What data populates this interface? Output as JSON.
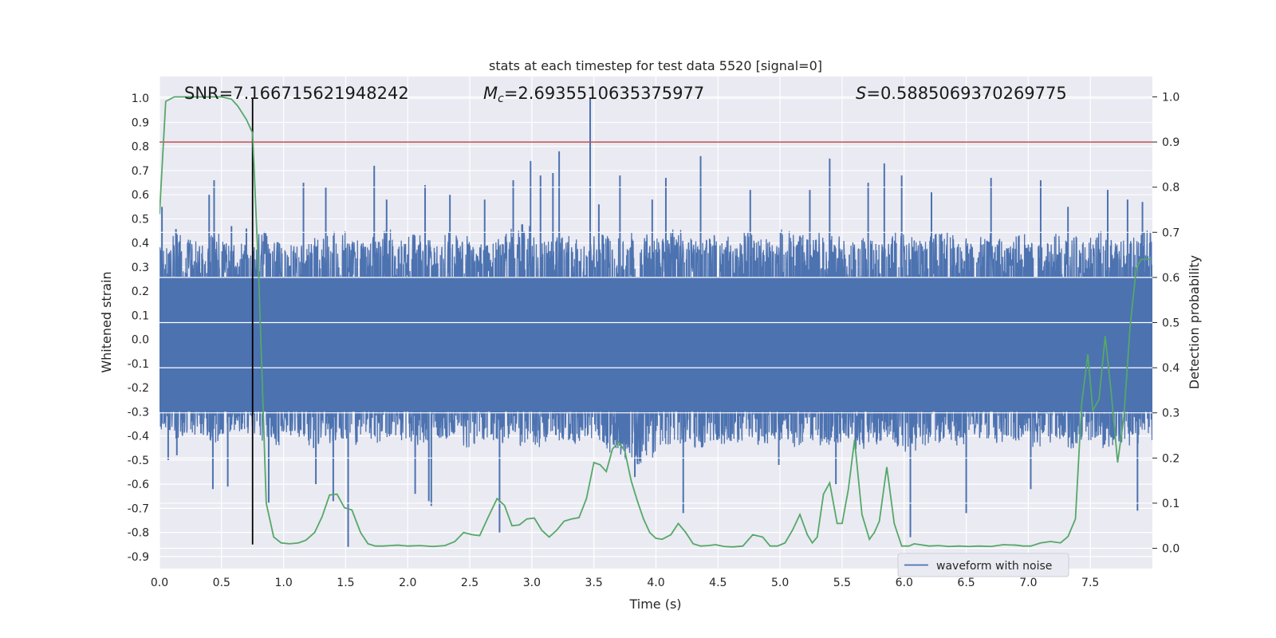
{
  "chart_data": {
    "type": "line",
    "title": "stats at each timestep for test data 5520 [signal=0]",
    "xlabel": "Time (s)",
    "ylabel": "Whitened strain",
    "ylabel_right": "Detection probability",
    "xlim": [
      0.0,
      8.0
    ],
    "ylim": [
      -0.95,
      1.09
    ],
    "ylim_right": [
      -0.045,
      1.045
    ],
    "x_ticks": [
      "0.0",
      "0.5",
      "1.0",
      "1.5",
      "2.0",
      "2.5",
      "3.0",
      "3.5",
      "4.0",
      "4.5",
      "5.0",
      "5.5",
      "6.0",
      "6.5",
      "7.0",
      "7.5"
    ],
    "y_ticks": [
      "1.0",
      "0.9",
      "0.8",
      "0.7",
      "0.6",
      "0.5",
      "0.4",
      "0.3",
      "0.2",
      "0.1",
      "0.0",
      "-0.1",
      "-0.2",
      "-0.3",
      "-0.4",
      "-0.5",
      "-0.6",
      "-0.7",
      "-0.8",
      "-0.9"
    ],
    "y_ticks_right": [
      "1.0",
      "0.9",
      "0.8",
      "0.7",
      "0.6",
      "0.5",
      "0.4",
      "0.3",
      "0.2",
      "0.1",
      "0.0"
    ],
    "grid": true,
    "legend": {
      "placement": "lower-right",
      "entries": [
        "waveform with noise"
      ]
    },
    "annotations": {
      "snr_label": "SNR=7.166715621948242",
      "mc_prefix": "M",
      "mc_sub": "c",
      "mc_value": "=2.6935510635375977",
      "s_prefix": "S",
      "s_value": "=0.5885069370269775"
    },
    "threshold_line": {
      "y_right": 0.9,
      "color": "#c44e52"
    },
    "marker_vline": {
      "x": 0.75,
      "color": "#000000"
    },
    "series": [
      {
        "name": "waveform with noise",
        "axis": "left",
        "color": "#4c72b0",
        "sample_rate": 2048,
        "duration": 8.0,
        "envelope_upper": [
          0.38,
          0.46,
          0.42,
          0.4,
          0.44,
          0.41,
          0.4,
          0.39,
          0.45,
          0.42,
          0.4,
          0.39,
          0.44,
          0.43,
          0.47,
          0.42,
          0.4,
          0.43,
          0.46,
          0.41,
          0.44,
          0.42,
          0.39,
          0.45,
          0.43,
          0.4,
          0.42,
          0.44,
          0.46,
          0.48,
          0.43,
          0.41,
          0.45,
          0.42,
          0.4,
          0.44,
          0.43,
          0.41,
          0.45,
          0.44,
          0.42,
          0.46,
          0.43,
          0.41,
          0.44,
          0.43,
          0.4,
          0.45,
          0.42,
          0.41,
          0.46,
          0.44,
          0.42,
          0.45,
          0.43,
          0.41,
          0.44,
          0.42,
          0.4,
          0.45,
          0.43,
          0.41,
          0.44,
          0.46,
          0.42,
          0.4,
          0.44,
          0.43,
          0.41,
          0.45,
          0.42,
          0.4,
          0.44,
          0.43,
          0.41,
          0.45,
          0.42,
          0.41,
          0.44,
          0.46
        ],
        "envelope_lower": [
          -0.38,
          -0.42,
          -0.4,
          -0.41,
          -0.43,
          -0.42,
          -0.4,
          -0.39,
          -0.42,
          -0.44,
          -0.4,
          -0.41,
          -0.45,
          -0.43,
          -0.42,
          -0.44,
          -0.4,
          -0.43,
          -0.41,
          -0.42,
          -0.44,
          -0.43,
          -0.41,
          -0.42,
          -0.45,
          -0.44,
          -0.42,
          -0.43,
          -0.41,
          -0.44,
          -0.45,
          -0.43,
          -0.42,
          -0.44,
          -0.41,
          -0.43,
          -0.48,
          -0.5,
          -0.52,
          -0.49,
          -0.46,
          -0.44,
          -0.43,
          -0.45,
          -0.42,
          -0.44,
          -0.43,
          -0.41,
          -0.44,
          -0.42,
          -0.43,
          -0.45,
          -0.42,
          -0.44,
          -0.43,
          -0.41,
          -0.46,
          -0.44,
          -0.42,
          -0.45,
          -0.47,
          -0.44,
          -0.43,
          -0.42,
          -0.44,
          -0.43,
          -0.41,
          -0.44,
          -0.42,
          -0.43,
          -0.45,
          -0.44,
          -0.42,
          -0.46,
          -0.44,
          -0.42,
          -0.45,
          -0.43,
          -0.44,
          -0.42
        ],
        "spikes": [
          {
            "x": 0.02,
            "y": 0.55
          },
          {
            "x": 0.07,
            "y": -0.5
          },
          {
            "x": 0.14,
            "y": -0.48
          },
          {
            "x": 0.4,
            "y": 0.6
          },
          {
            "x": 0.43,
            "y": -0.62
          },
          {
            "x": 0.44,
            "y": 0.66
          },
          {
            "x": 0.55,
            "y": -0.61
          },
          {
            "x": 0.58,
            "y": 0.47
          },
          {
            "x": 0.7,
            "y": 0.46
          },
          {
            "x": 0.88,
            "y": -0.68
          },
          {
            "x": 1.16,
            "y": 0.65
          },
          {
            "x": 1.26,
            "y": -0.6
          },
          {
            "x": 1.34,
            "y": 0.63
          },
          {
            "x": 1.4,
            "y": -0.67
          },
          {
            "x": 1.52,
            "y": -0.86
          },
          {
            "x": 1.73,
            "y": 0.72
          },
          {
            "x": 1.83,
            "y": 0.58
          },
          {
            "x": 2.06,
            "y": -0.64
          },
          {
            "x": 2.14,
            "y": 0.64
          },
          {
            "x": 2.17,
            "y": -0.67
          },
          {
            "x": 2.19,
            "y": -0.69
          },
          {
            "x": 2.34,
            "y": 0.6
          },
          {
            "x": 2.62,
            "y": 0.58
          },
          {
            "x": 2.74,
            "y": -0.8
          },
          {
            "x": 2.85,
            "y": 0.66
          },
          {
            "x": 2.99,
            "y": 0.74
          },
          {
            "x": 3.07,
            "y": 0.68
          },
          {
            "x": 3.17,
            "y": 0.69
          },
          {
            "x": 3.22,
            "y": 0.78
          },
          {
            "x": 3.47,
            "y": 1.0
          },
          {
            "x": 3.54,
            "y": 0.56
          },
          {
            "x": 3.71,
            "y": 0.68
          },
          {
            "x": 3.83,
            "y": -0.57
          },
          {
            "x": 3.97,
            "y": 0.58
          },
          {
            "x": 4.08,
            "y": 0.67
          },
          {
            "x": 4.22,
            "y": -0.72
          },
          {
            "x": 4.36,
            "y": 0.76
          },
          {
            "x": 4.76,
            "y": 0.62
          },
          {
            "x": 4.99,
            "y": -0.52
          },
          {
            "x": 5.24,
            "y": 0.62
          },
          {
            "x": 5.4,
            "y": 0.75
          },
          {
            "x": 5.45,
            "y": -0.6
          },
          {
            "x": 5.71,
            "y": 0.65
          },
          {
            "x": 5.84,
            "y": 0.73
          },
          {
            "x": 5.98,
            "y": 0.68
          },
          {
            "x": 6.05,
            "y": -0.82
          },
          {
            "x": 6.22,
            "y": 0.61
          },
          {
            "x": 6.5,
            "y": -0.72
          },
          {
            "x": 6.7,
            "y": 0.67
          },
          {
            "x": 7.02,
            "y": -0.62
          },
          {
            "x": 7.1,
            "y": 0.66
          },
          {
            "x": 7.32,
            "y": 0.55
          },
          {
            "x": 7.64,
            "y": 0.62
          },
          {
            "x": 7.8,
            "y": 0.58
          },
          {
            "x": 7.88,
            "y": -0.71
          },
          {
            "x": 7.92,
            "y": 0.57
          }
        ]
      },
      {
        "name": "detection probability",
        "axis": "right",
        "color": "#55a868",
        "x": [
          0.0,
          0.05,
          0.12,
          0.2,
          0.3,
          0.4,
          0.5,
          0.58,
          0.63,
          0.7,
          0.75,
          0.8,
          0.86,
          0.92,
          0.98,
          1.05,
          1.12,
          1.18,
          1.25,
          1.31,
          1.37,
          1.43,
          1.49,
          1.55,
          1.62,
          1.68,
          1.74,
          1.8,
          1.86,
          1.92,
          2.0,
          2.1,
          2.2,
          2.3,
          2.38,
          2.45,
          2.52,
          2.58,
          2.65,
          2.72,
          2.78,
          2.84,
          2.9,
          2.96,
          3.02,
          3.08,
          3.14,
          3.2,
          3.26,
          3.32,
          3.38,
          3.44,
          3.5,
          3.55,
          3.6,
          3.65,
          3.7,
          3.75,
          3.8,
          3.85,
          3.9,
          3.95,
          4.0,
          4.05,
          4.12,
          4.18,
          4.24,
          4.3,
          4.36,
          4.42,
          4.48,
          4.55,
          4.62,
          4.7,
          4.78,
          4.86,
          4.92,
          4.98,
          5.04,
          5.1,
          5.16,
          5.22,
          5.26,
          5.3,
          5.35,
          5.4,
          5.46,
          5.5,
          5.55,
          5.6,
          5.66,
          5.72,
          5.76,
          5.8,
          5.86,
          5.92,
          5.98,
          6.04,
          6.08,
          6.13,
          6.2,
          6.28,
          6.36,
          6.44,
          6.52,
          6.6,
          6.7,
          6.8,
          6.9,
          6.96,
          7.02,
          7.1,
          7.18,
          7.26,
          7.32,
          7.38,
          7.43,
          7.48,
          7.52,
          7.57,
          7.62,
          7.67,
          7.72,
          7.77,
          7.82,
          7.87,
          7.91,
          7.95,
          7.99
        ],
        "y": [
          0.74,
          0.99,
          1.0,
          1.0,
          1.0,
          1.0,
          1.0,
          0.995,
          0.98,
          0.95,
          0.92,
          0.6,
          0.1,
          0.025,
          0.012,
          0.01,
          0.012,
          0.018,
          0.035,
          0.07,
          0.118,
          0.12,
          0.09,
          0.085,
          0.035,
          0.01,
          0.005,
          0.005,
          0.006,
          0.007,
          0.005,
          0.006,
          0.004,
          0.006,
          0.015,
          0.035,
          0.03,
          0.028,
          0.07,
          0.11,
          0.095,
          0.05,
          0.052,
          0.065,
          0.067,
          0.04,
          0.025,
          0.04,
          0.06,
          0.065,
          0.068,
          0.11,
          0.19,
          0.185,
          0.17,
          0.22,
          0.235,
          0.215,
          0.15,
          0.105,
          0.065,
          0.035,
          0.022,
          0.02,
          0.03,
          0.055,
          0.035,
          0.01,
          0.005,
          0.006,
          0.008,
          0.004,
          0.003,
          0.005,
          0.03,
          0.025,
          0.005,
          0.005,
          0.012,
          0.04,
          0.075,
          0.03,
          0.012,
          0.025,
          0.12,
          0.145,
          0.055,
          0.055,
          0.13,
          0.24,
          0.075,
          0.02,
          0.035,
          0.06,
          0.18,
          0.055,
          0.005,
          0.005,
          0.01,
          0.008,
          0.005,
          0.006,
          0.004,
          0.005,
          0.004,
          0.005,
          0.004,
          0.008,
          0.007,
          0.005,
          0.005,
          0.012,
          0.015,
          0.012,
          0.026,
          0.065,
          0.32,
          0.43,
          0.305,
          0.33,
          0.47,
          0.34,
          0.19,
          0.29,
          0.49,
          0.62,
          0.64,
          0.64,
          0.64
        ]
      }
    ]
  }
}
